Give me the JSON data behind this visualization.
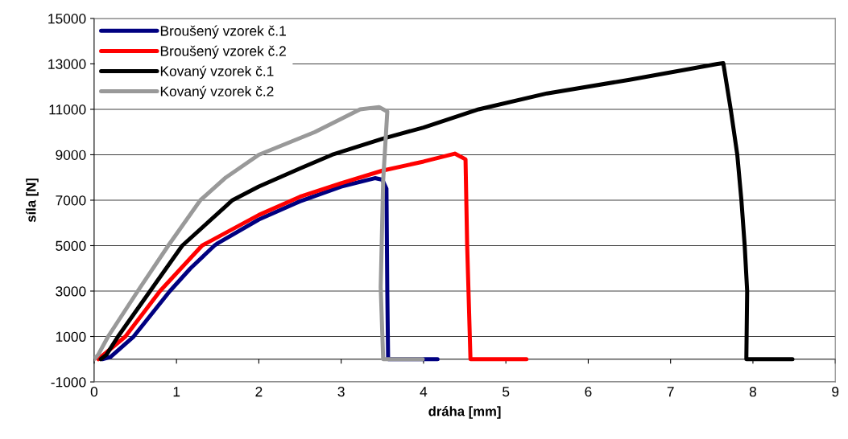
{
  "chart_data": {
    "type": "line",
    "xlabel": "dráha [mm]",
    "ylabel": "síla [N]",
    "xlim": [
      0,
      9
    ],
    "xticks": [
      0,
      1,
      2,
      3,
      4,
      5,
      6,
      7,
      8,
      9
    ],
    "ylim": [
      -1000,
      15000
    ],
    "yticks": [
      -1000,
      1000,
      3000,
      5000,
      7000,
      9000,
      11000,
      13000,
      15000
    ],
    "grid": "y",
    "legend": "top left",
    "line_style": "solid",
    "marker": "none",
    "series": [
      {
        "name": "Broušený vzorek č.1",
        "color": "#000080",
        "x": [
          0.1,
          0.2,
          0.48,
          0.7,
          0.92,
          1.17,
          1.46,
          1.5,
          2.0,
          2.5,
          3.0,
          3.41,
          3.5,
          3.55,
          3.56,
          3.57,
          4.17
        ],
        "values": [
          0,
          100,
          1000,
          2000,
          3000,
          4000,
          5000,
          5100,
          6150,
          6950,
          7600,
          7970,
          7900,
          7500,
          3000,
          0,
          0
        ]
      },
      {
        "name": "Broušený vzorek č.2",
        "color": "#ff0000",
        "x": [
          0.05,
          0.15,
          0.38,
          0.8,
          1.31,
          2.0,
          2.5,
          3.0,
          3.5,
          4.0,
          4.38,
          4.51,
          4.53,
          4.57,
          5.25
        ],
        "values": [
          0,
          300,
          1000,
          3000,
          5000,
          6350,
          7150,
          7750,
          8300,
          8700,
          9050,
          8800,
          5000,
          0,
          0
        ]
      },
      {
        "name": "Kovaný vzorek č.1",
        "color": "#000000",
        "x": [
          0.08,
          0.15,
          0.29,
          0.68,
          1.07,
          1.68,
          2.0,
          2.5,
          2.89,
          3.5,
          4.0,
          4.67,
          5.5,
          6.5,
          7.57,
          7.64,
          7.73,
          7.81,
          7.86,
          7.9,
          7.93,
          7.92,
          8.48
        ],
        "values": [
          0,
          200,
          1000,
          3000,
          5000,
          7000,
          7600,
          8400,
          9000,
          9700,
          10200,
          11000,
          11700,
          12300,
          13000,
          13030,
          11000,
          9000,
          7000,
          5000,
          3000,
          0,
          0
        ]
      },
      {
        "name": "Kovaný vzorek č.2",
        "color": "#999999",
        "x": [
          0.0,
          0.05,
          0.17,
          0.53,
          0.9,
          1.29,
          1.6,
          2.0,
          2.68,
          3.23,
          3.46,
          3.56,
          3.51,
          3.48,
          3.51,
          3.99
        ],
        "values": [
          0,
          200,
          1000,
          3000,
          5000,
          7000,
          8000,
          9000,
          10000,
          11000,
          11100,
          10900,
          7870,
          3170,
          0,
          0
        ]
      }
    ]
  }
}
